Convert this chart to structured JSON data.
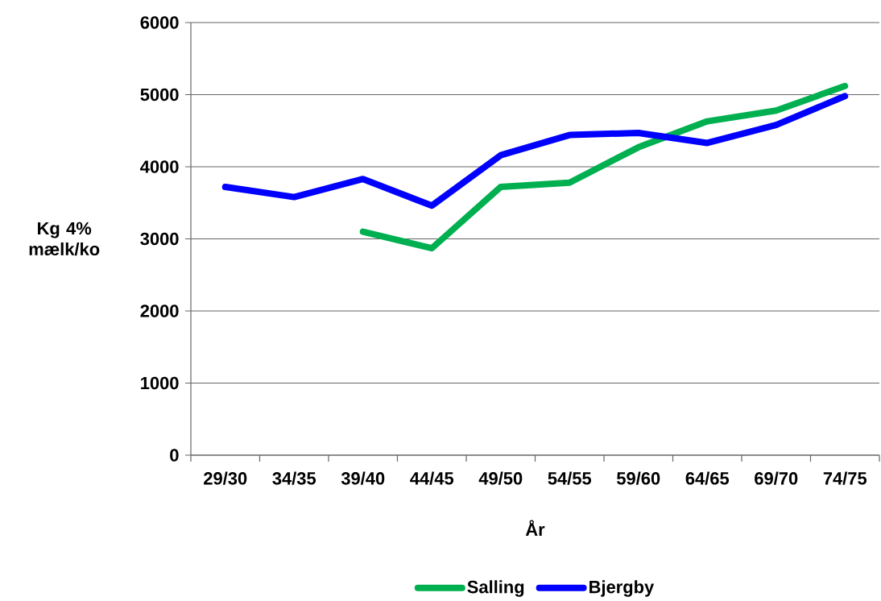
{
  "chart_data": {
    "type": "line",
    "xlabel": "År",
    "ylabel": "Kg 4% mælk/ko",
    "categories": [
      "29/30",
      "34/35",
      "39/40",
      "44/45",
      "49/50",
      "54/55",
      "59/60",
      "64/65",
      "69/70",
      "74/75"
    ],
    "series": [
      {
        "name": "Salling",
        "color": "#00b050",
        "values": [
          null,
          null,
          3100,
          2870,
          3720,
          3780,
          4270,
          4630,
          4780,
          5120
        ]
      },
      {
        "name": "Bjergby",
        "color": "#0000ff",
        "values": [
          3720,
          3580,
          3830,
          3460,
          4160,
          4440,
          4470,
          4330,
          4580,
          4980
        ]
      }
    ],
    "ylim": [
      0,
      6000
    ],
    "yticks": [
      0,
      1000,
      2000,
      3000,
      4000,
      5000,
      6000
    ],
    "grid": "y",
    "legend": "bottom"
  }
}
